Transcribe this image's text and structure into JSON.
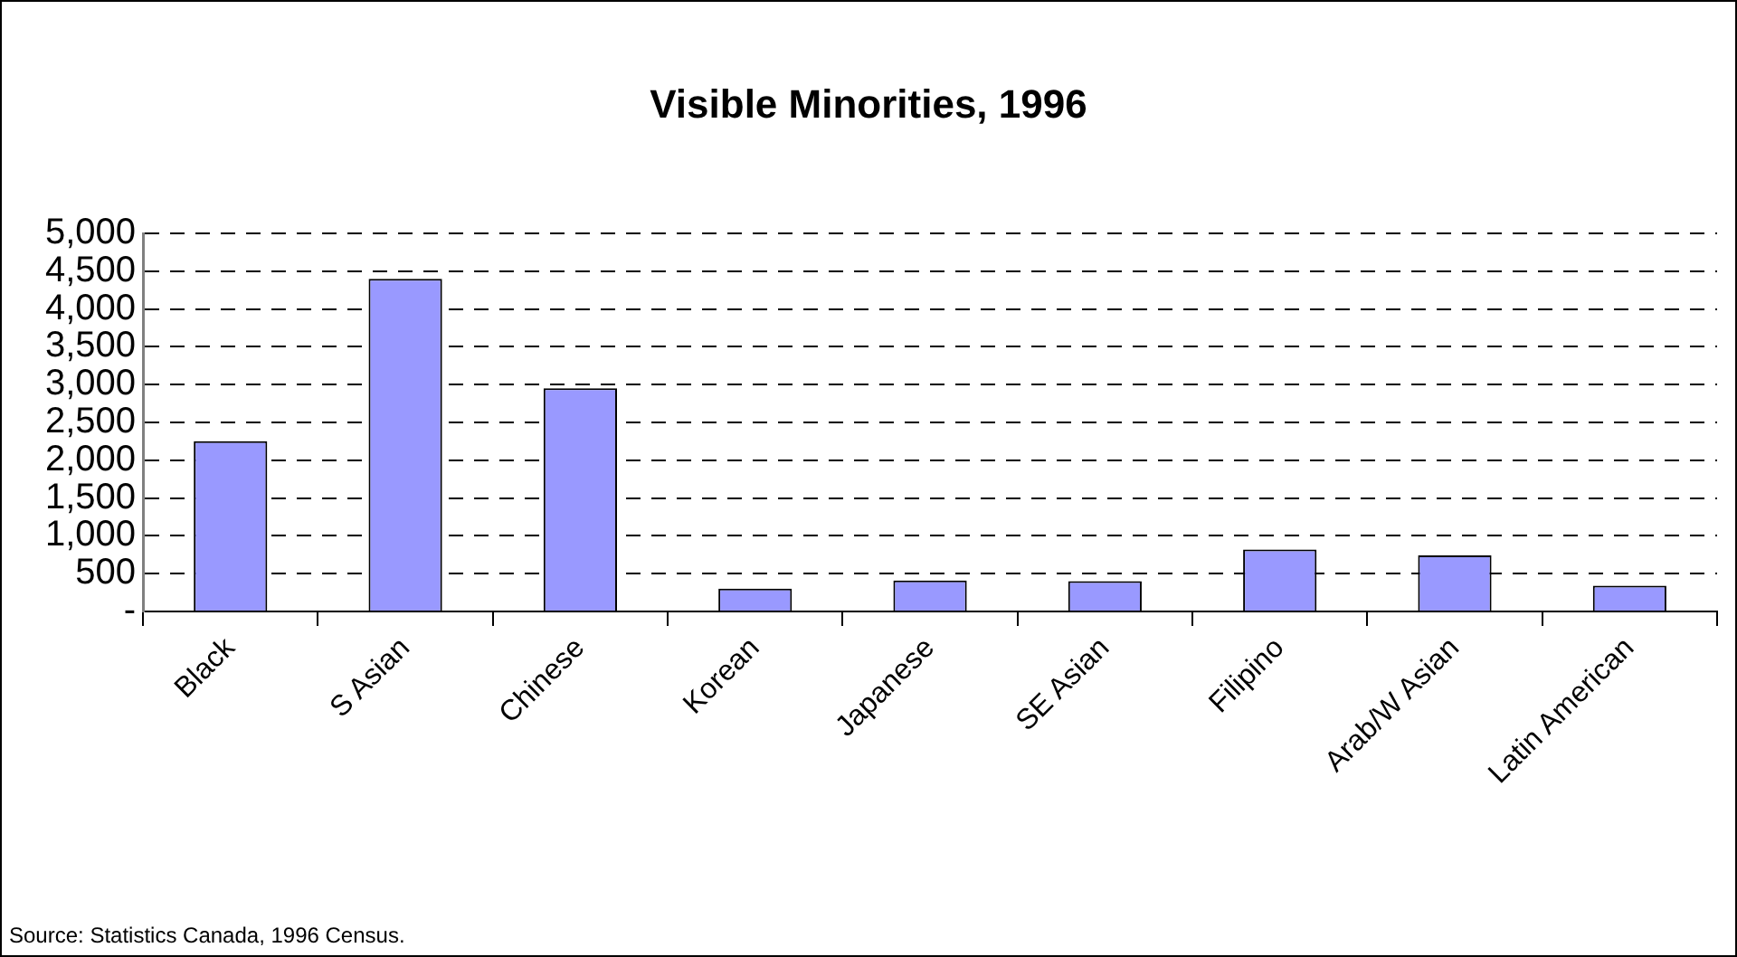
{
  "chart_data": {
    "type": "bar",
    "title": "Visible Minorities, 1996",
    "categories": [
      "Black",
      "S Asian",
      "Chinese",
      "Korean",
      "Japanese",
      "SE Asian",
      "Filipino",
      "Arab/W Asian",
      "Latin American"
    ],
    "values": [
      2250,
      4400,
      2950,
      300,
      410,
      400,
      820,
      740,
      340
    ],
    "color": "#9999ff",
    "ylim": [
      0,
      5000
    ],
    "yticks": [
      {
        "value": 0,
        "label": "-"
      },
      {
        "value": 500,
        "label": "500"
      },
      {
        "value": 1000,
        "label": "1,000"
      },
      {
        "value": 1500,
        "label": "1,500"
      },
      {
        "value": 2000,
        "label": "2,000"
      },
      {
        "value": 2500,
        "label": "2,500"
      },
      {
        "value": 3000,
        "label": "3,000"
      },
      {
        "value": 3500,
        "label": "3,500"
      },
      {
        "value": 4000,
        "label": "4,000"
      },
      {
        "value": 4500,
        "label": "4,500"
      },
      {
        "value": 5000,
        "label": "5,000"
      }
    ],
    "grid": "y",
    "annotations": [
      "Source: Statistics Canada, 1996 Census."
    ]
  }
}
